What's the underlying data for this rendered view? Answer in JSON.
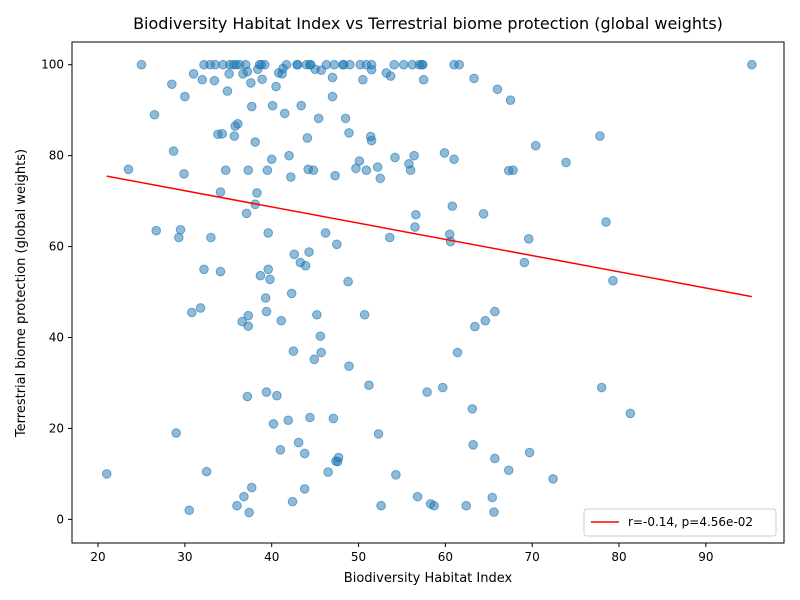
{
  "chart_data": {
    "type": "scatter",
    "title": "Biodiversity Habitat Index vs Terrestrial biome protection (global weights)",
    "xlabel": "Biodiversity Habitat Index",
    "ylabel": "Terrestrial biome protection (global weights)",
    "xlim": [
      17,
      99
    ],
    "ylim": [
      -5.2,
      105
    ],
    "xticks": [
      20,
      30,
      40,
      50,
      60,
      70,
      80,
      90
    ],
    "yticks": [
      0,
      20,
      40,
      60,
      80,
      100
    ],
    "grid": false,
    "legend": {
      "placement": "lower-right",
      "entries": [
        "r=-0.14, p=4.56e-02"
      ]
    },
    "colors": {
      "points": "#1f77b4",
      "fit_line": "#ff0000"
    },
    "series": [
      {
        "kind": "points",
        "points": [
          [
            21,
            10
          ],
          [
            23.5,
            77
          ],
          [
            25,
            100
          ],
          [
            26.5,
            89
          ],
          [
            26.7,
            63.5
          ],
          [
            28.5,
            95.7
          ],
          [
            28.7,
            81
          ],
          [
            29,
            19
          ],
          [
            29.3,
            62
          ],
          [
            29.5,
            63.7
          ],
          [
            29.9,
            76
          ],
          [
            30,
            93
          ],
          [
            30.5,
            2
          ],
          [
            30.8,
            45.5
          ],
          [
            31,
            98
          ],
          [
            31.8,
            46.5
          ],
          [
            32,
            96.7
          ],
          [
            32.2,
            55
          ],
          [
            32.2,
            100
          ],
          [
            32.5,
            10.5
          ],
          [
            32.9,
            100
          ],
          [
            33,
            62
          ],
          [
            33.4,
            96.5
          ],
          [
            33.5,
            100
          ],
          [
            33.8,
            84.7
          ],
          [
            34.1,
            72
          ],
          [
            34.1,
            54.5
          ],
          [
            34.3,
            84.8
          ],
          [
            34.4,
            100
          ],
          [
            34.7,
            76.8
          ],
          [
            34.9,
            94.2
          ],
          [
            35.1,
            98
          ],
          [
            35.2,
            100
          ],
          [
            35.6,
            100
          ],
          [
            35.7,
            84.3
          ],
          [
            35.8,
            86.5
          ],
          [
            35.9,
            100
          ],
          [
            36,
            3
          ],
          [
            36.1,
            87
          ],
          [
            36.3,
            100
          ],
          [
            36.6,
            43.5
          ],
          [
            36.7,
            98
          ],
          [
            36.8,
            5
          ],
          [
            37,
            100
          ],
          [
            37.1,
            67.3
          ],
          [
            37.2,
            98.5
          ],
          [
            37.2,
            27
          ],
          [
            37.3,
            44.8
          ],
          [
            37.3,
            76.8
          ],
          [
            37.3,
            42.5
          ],
          [
            37.4,
            1.5
          ],
          [
            37.6,
            96
          ],
          [
            37.7,
            7
          ],
          [
            37.7,
            90.8
          ],
          [
            38.1,
            83
          ],
          [
            38.1,
            69.3
          ],
          [
            38.3,
            71.8
          ],
          [
            38.4,
            99
          ],
          [
            38.6,
            100
          ],
          [
            38.7,
            53.6
          ],
          [
            38.8,
            100
          ],
          [
            38.9,
            96.8
          ],
          [
            39.2,
            100
          ],
          [
            39.3,
            48.7
          ],
          [
            39.4,
            28
          ],
          [
            39.4,
            45.7
          ],
          [
            39.5,
            76.8
          ],
          [
            39.6,
            63
          ],
          [
            39.6,
            55
          ],
          [
            39.8,
            52.8
          ],
          [
            40,
            79.2
          ],
          [
            40.1,
            91
          ],
          [
            40.2,
            21
          ],
          [
            40.5,
            95.2
          ],
          [
            40.6,
            27.2
          ],
          [
            40.8,
            98.2
          ],
          [
            41,
            15.3
          ],
          [
            41.1,
            43.7
          ],
          [
            41.2,
            98
          ],
          [
            41.3,
            99.2
          ],
          [
            41.5,
            89.3
          ],
          [
            41.7,
            100
          ],
          [
            41.9,
            21.8
          ],
          [
            42,
            80
          ],
          [
            42.2,
            75.3
          ],
          [
            42.3,
            49.7
          ],
          [
            42.4,
            3.9
          ],
          [
            42.5,
            37
          ],
          [
            42.6,
            58.3
          ],
          [
            42.9,
            100
          ],
          [
            43,
            100
          ],
          [
            43.1,
            16.9
          ],
          [
            43.3,
            56.5
          ],
          [
            43.4,
            91
          ],
          [
            43.8,
            14.5
          ],
          [
            43.8,
            6.7
          ],
          [
            43.9,
            55.8
          ],
          [
            44,
            100
          ],
          [
            44.1,
            83.9
          ],
          [
            44.2,
            77
          ],
          [
            44.3,
            58.8
          ],
          [
            44.4,
            22.4
          ],
          [
            44.4,
            100
          ],
          [
            44.5,
            100
          ],
          [
            44.8,
            76.8
          ],
          [
            44.9,
            35.2
          ],
          [
            45,
            99
          ],
          [
            45.2,
            45
          ],
          [
            45.4,
            88.2
          ],
          [
            45.6,
            40.3
          ],
          [
            45.7,
            98.8
          ],
          [
            45.7,
            36.7
          ],
          [
            46.2,
            63
          ],
          [
            46.3,
            100
          ],
          [
            46.5,
            10.4
          ],
          [
            47,
            97.2
          ],
          [
            47,
            93
          ],
          [
            47.1,
            22.2
          ],
          [
            47.2,
            100
          ],
          [
            47.3,
            75.6
          ],
          [
            47.4,
            12.8
          ],
          [
            47.5,
            60.5
          ],
          [
            47.6,
            12.7
          ],
          [
            47.7,
            13.6
          ],
          [
            48.2,
            100
          ],
          [
            48.3,
            100
          ],
          [
            48.5,
            88.2
          ],
          [
            48.8,
            52.3
          ],
          [
            48.9,
            33.7
          ],
          [
            48.9,
            85
          ],
          [
            49,
            100
          ],
          [
            49.7,
            77.2
          ],
          [
            50.1,
            78.8
          ],
          [
            50.2,
            100
          ],
          [
            50.5,
            96.7
          ],
          [
            50.7,
            45
          ],
          [
            50.9,
            100
          ],
          [
            50.9,
            76.8
          ],
          [
            51.2,
            29.5
          ],
          [
            51.4,
            84.2
          ],
          [
            51.5,
            98.9
          ],
          [
            51.5,
            100
          ],
          [
            51.5,
            83.3
          ],
          [
            52.2,
            77.5
          ],
          [
            52.3,
            18.8
          ],
          [
            52.5,
            75
          ],
          [
            52.6,
            3
          ],
          [
            53.2,
            98.2
          ],
          [
            53.6,
            62
          ],
          [
            53.7,
            97.5
          ],
          [
            54.1,
            100
          ],
          [
            54.2,
            79.6
          ],
          [
            54.3,
            9.8
          ],
          [
            55.2,
            100
          ],
          [
            55.8,
            78.2
          ],
          [
            56,
            76.8
          ],
          [
            56.2,
            100
          ],
          [
            56.4,
            80
          ],
          [
            56.5,
            64.3
          ],
          [
            56.6,
            67
          ],
          [
            56.8,
            5
          ],
          [
            57,
            100
          ],
          [
            57.3,
            100
          ],
          [
            57.4,
            100
          ],
          [
            57.5,
            96.7
          ],
          [
            57.9,
            28
          ],
          [
            58.3,
            3.4
          ],
          [
            58.7,
            3
          ],
          [
            59.7,
            29
          ],
          [
            59.9,
            80.6
          ],
          [
            60.5,
            62.7
          ],
          [
            60.6,
            61.1
          ],
          [
            60.8,
            68.9
          ],
          [
            61,
            79.2
          ],
          [
            61,
            100
          ],
          [
            61.4,
            36.7
          ],
          [
            61.6,
            100
          ],
          [
            62.4,
            3
          ],
          [
            63.1,
            24.3
          ],
          [
            63.2,
            16.4
          ],
          [
            63.3,
            97
          ],
          [
            63.4,
            42.4
          ],
          [
            64.4,
            67.2
          ],
          [
            64.6,
            43.7
          ],
          [
            65.4,
            4.8
          ],
          [
            65.6,
            1.6
          ],
          [
            65.7,
            45.7
          ],
          [
            65.7,
            13.4
          ],
          [
            66,
            94.6
          ],
          [
            67.3,
            10.8
          ],
          [
            67.3,
            76.7
          ],
          [
            67.5,
            92.2
          ],
          [
            67.8,
            76.8
          ],
          [
            69.1,
            56.5
          ],
          [
            69.6,
            61.7
          ],
          [
            69.7,
            14.7
          ],
          [
            70.4,
            82.2
          ],
          [
            72.4,
            8.9
          ],
          [
            73.9,
            78.5
          ],
          [
            77.8,
            84.3
          ],
          [
            78,
            29
          ],
          [
            78.5,
            65.4
          ],
          [
            79.3,
            52.5
          ],
          [
            81.3,
            23.3
          ],
          [
            95.3,
            100
          ]
        ]
      },
      {
        "kind": "fit_line",
        "name": "r=-0.14, p=4.56e-02",
        "points": [
          [
            21,
            75.5
          ],
          [
            95.3,
            49
          ]
        ]
      }
    ]
  }
}
